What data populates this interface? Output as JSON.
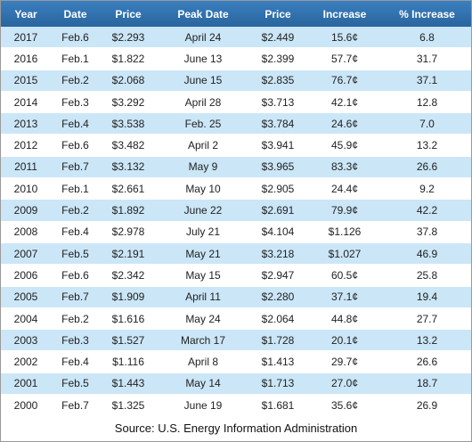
{
  "table": {
    "columns": [
      "Year",
      "Date",
      "Price",
      "Peak Date",
      "Price",
      "Increase",
      "% Increase"
    ],
    "rows": [
      [
        "2017",
        "Feb.6",
        "$2.293",
        "April 24",
        "$2.449",
        "15.6¢",
        "6.8"
      ],
      [
        "2016",
        "Feb.1",
        "$1.822",
        "June 13",
        "$2.399",
        "57.7¢",
        "31.7"
      ],
      [
        "2015",
        "Feb.2",
        "$2.068",
        "June 15",
        "$2.835",
        "76.7¢",
        "37.1"
      ],
      [
        "2014",
        "Feb.3",
        "$3.292",
        "April 28",
        "$3.713",
        "42.1¢",
        "12.8"
      ],
      [
        "2013",
        "Feb.4",
        "$3.538",
        "Feb. 25",
        "$3.784",
        "24.6¢",
        "7.0"
      ],
      [
        "2012",
        "Feb.6",
        "$3.482",
        "April 2",
        "$3.941",
        "45.9¢",
        "13.2"
      ],
      [
        "2011",
        "Feb.7",
        "$3.132",
        "May 9",
        "$3.965",
        "83.3¢",
        "26.6"
      ],
      [
        "2010",
        "Feb.1",
        "$2.661",
        "May 10",
        "$2.905",
        "24.4¢",
        "9.2"
      ],
      [
        "2009",
        "Feb.2",
        "$1.892",
        "June 22",
        "$2.691",
        "79.9¢",
        "42.2"
      ],
      [
        "2008",
        "Feb.4",
        "$2.978",
        "July 21",
        "$4.104",
        "$1.126",
        "37.8"
      ],
      [
        "2007",
        "Feb.5",
        "$2.191",
        "May 21",
        "$3.218",
        "$1.027",
        "46.9"
      ],
      [
        "2006",
        "Feb.6",
        "$2.342",
        "May 15",
        "$2.947",
        "60.5¢",
        "25.8"
      ],
      [
        "2005",
        "Feb.7",
        "$1.909",
        "April 11",
        "$2.280",
        "37.1¢",
        "19.4"
      ],
      [
        "2004",
        "Feb.2",
        "$1.616",
        "May 24",
        "$2.064",
        "44.8¢",
        "27.7"
      ],
      [
        "2003",
        "Feb.3",
        "$1.527",
        "March 17",
        "$1.728",
        "20.1¢",
        "13.2"
      ],
      [
        "2002",
        "Feb.4",
        "$1.116",
        "April 8",
        "$1.413",
        "29.7¢",
        "26.6"
      ],
      [
        "2001",
        "Feb.5",
        "$1.443",
        "May 14",
        "$1.713",
        "27.0¢",
        "18.7"
      ],
      [
        "2000",
        "Feb.7",
        "$1.325",
        "June 19",
        "$1.681",
        "35.6¢",
        "26.9"
      ]
    ],
    "source": "Source: U.S. Energy Information Administration"
  }
}
